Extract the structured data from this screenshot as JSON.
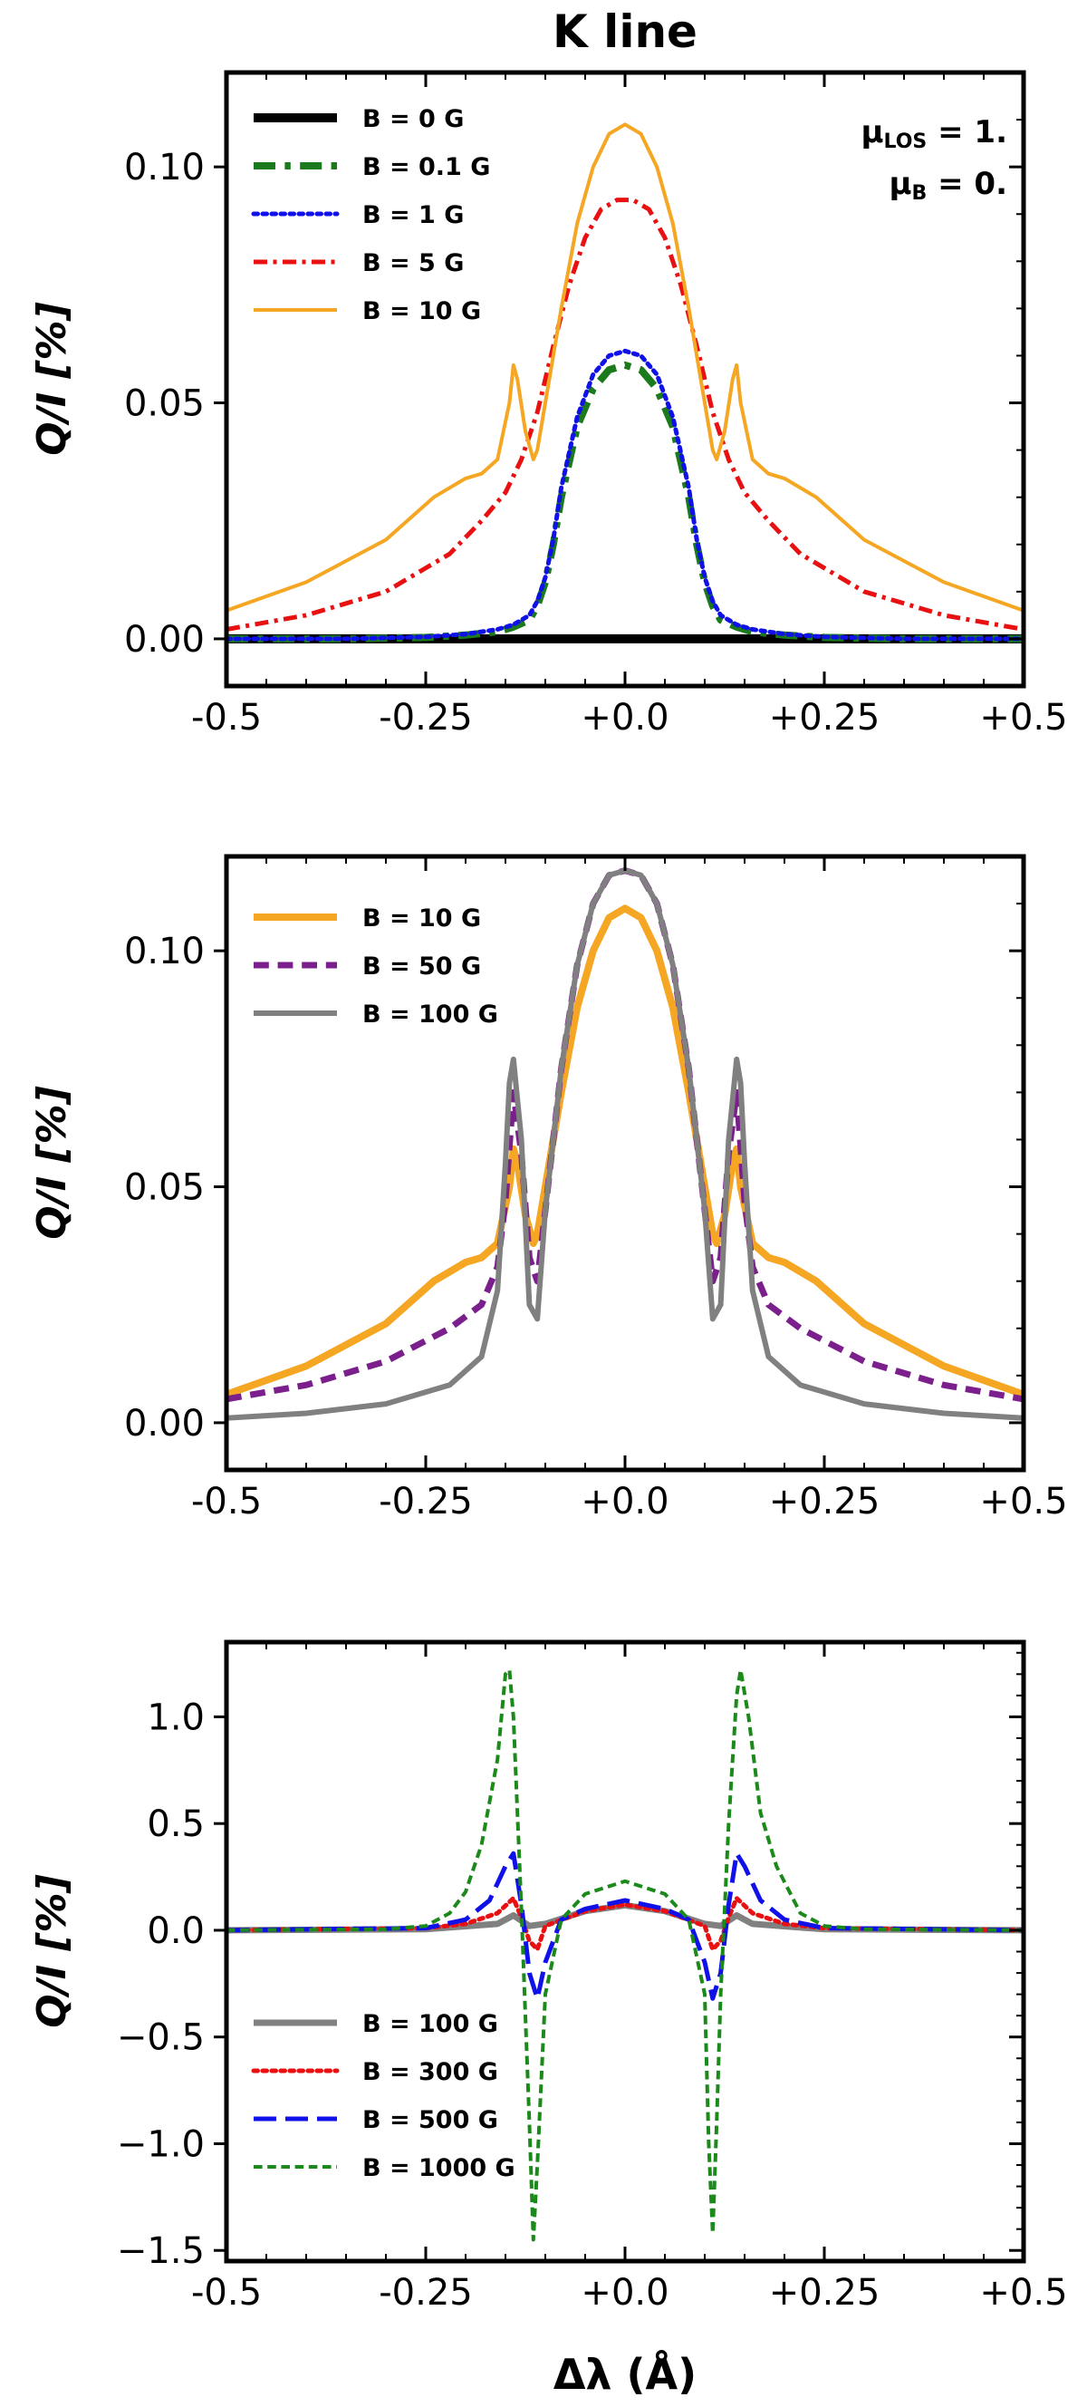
{
  "title": "K line",
  "xlabel": "Δλ (Å)",
  "ylabel": "Q/I [%]",
  "annotations": {
    "mu_los": {
      "symbol": "μ",
      "sub": "LOS",
      "value": " = 1."
    },
    "mu_b": {
      "symbol": "μ",
      "sub": "B",
      "value": " = 0."
    }
  },
  "chart_data": [
    {
      "type": "line",
      "panel": "top",
      "ylabel": "Q/I [%]",
      "xlim": [
        -0.5,
        0.5
      ],
      "ylim": [
        -0.01,
        0.12
      ],
      "xticks": [
        -0.5,
        -0.25,
        0.0,
        0.25,
        0.5
      ],
      "xtick_labels": [
        "-0.5",
        "-0.25",
        "+0.0",
        "+0.25",
        "+0.5"
      ],
      "yticks": [
        0.0,
        0.05,
        0.1
      ],
      "ytick_labels": [
        "0.00",
        "0.05",
        "0.10"
      ],
      "legend_position": "upper-left",
      "series": [
        {
          "name": "B = 0 G",
          "color": "#000000",
          "dash": "solid",
          "width": 10,
          "x": [
            -0.5,
            0.5
          ],
          "y": [
            0.0,
            0.0
          ]
        },
        {
          "name": "B = 0.1 G",
          "color": "#1b7a1b",
          "dash": "dashdot",
          "width": 8,
          "x": [
            -0.5,
            -0.35,
            -0.25,
            -0.2,
            -0.16,
            -0.14,
            -0.12,
            -0.11,
            -0.1,
            -0.09,
            -0.08,
            -0.06,
            -0.04,
            -0.02,
            0,
            0.02,
            0.04,
            0.06,
            0.08,
            0.09,
            0.1,
            0.11,
            0.12,
            0.14,
            0.16,
            0.2,
            0.25,
            0.35,
            0.5
          ],
          "y": [
            0,
            0,
            0.0003,
            0.0008,
            0.0015,
            0.0025,
            0.004,
            0.007,
            0.012,
            0.02,
            0.03,
            0.045,
            0.053,
            0.057,
            0.058,
            0.057,
            0.053,
            0.045,
            0.03,
            0.02,
            0.012,
            0.007,
            0.004,
            0.0025,
            0.0015,
            0.0008,
            0.0003,
            0,
            0
          ]
        },
        {
          "name": "B = 1 G",
          "color": "#1010e8",
          "dash": "dotted",
          "width": 5,
          "x": [
            -0.5,
            -0.35,
            -0.25,
            -0.2,
            -0.16,
            -0.14,
            -0.12,
            -0.11,
            -0.1,
            -0.09,
            -0.08,
            -0.06,
            -0.04,
            -0.02,
            0,
            0.02,
            0.04,
            0.06,
            0.08,
            0.09,
            0.1,
            0.11,
            0.12,
            0.14,
            0.16,
            0.2,
            0.25,
            0.35,
            0.5
          ],
          "y": [
            0,
            0,
            0.0004,
            0.001,
            0.002,
            0.003,
            0.005,
            0.008,
            0.013,
            0.021,
            0.032,
            0.047,
            0.056,
            0.06,
            0.061,
            0.06,
            0.056,
            0.047,
            0.032,
            0.021,
            0.013,
            0.008,
            0.005,
            0.003,
            0.002,
            0.001,
            0.0004,
            0,
            0
          ]
        },
        {
          "name": "B = 5 G",
          "color": "#e81010",
          "dash": "dashdot",
          "width": 5,
          "x": [
            -0.5,
            -0.4,
            -0.3,
            -0.22,
            -0.18,
            -0.15,
            -0.13,
            -0.11,
            -0.09,
            -0.07,
            -0.05,
            -0.03,
            -0.01,
            0,
            0.01,
            0.03,
            0.05,
            0.07,
            0.09,
            0.11,
            0.13,
            0.15,
            0.18,
            0.22,
            0.3,
            0.4,
            0.5
          ],
          "y": [
            0.002,
            0.005,
            0.01,
            0.018,
            0.025,
            0.031,
            0.038,
            0.048,
            0.062,
            0.075,
            0.085,
            0.091,
            0.093,
            0.093,
            0.093,
            0.091,
            0.085,
            0.075,
            0.062,
            0.048,
            0.038,
            0.031,
            0.025,
            0.018,
            0.01,
            0.005,
            0.002
          ]
        },
        {
          "name": "B = 10 G",
          "color": "#f5a623",
          "dash": "solid",
          "width": 4,
          "x": [
            -0.5,
            -0.4,
            -0.3,
            -0.24,
            -0.2,
            -0.18,
            -0.16,
            -0.145,
            -0.14,
            -0.135,
            -0.125,
            -0.115,
            -0.11,
            -0.1,
            -0.08,
            -0.06,
            -0.04,
            -0.02,
            0,
            0.02,
            0.04,
            0.06,
            0.08,
            0.1,
            0.11,
            0.115,
            0.125,
            0.135,
            0.14,
            0.145,
            0.16,
            0.18,
            0.2,
            0.24,
            0.3,
            0.4,
            0.5
          ],
          "y": [
            0.006,
            0.012,
            0.021,
            0.03,
            0.034,
            0.035,
            0.038,
            0.05,
            0.058,
            0.055,
            0.044,
            0.038,
            0.04,
            0.05,
            0.07,
            0.088,
            0.1,
            0.107,
            0.109,
            0.107,
            0.1,
            0.088,
            0.07,
            0.05,
            0.04,
            0.038,
            0.044,
            0.055,
            0.058,
            0.05,
            0.038,
            0.035,
            0.034,
            0.03,
            0.021,
            0.012,
            0.006
          ]
        }
      ]
    },
    {
      "type": "line",
      "panel": "middle",
      "ylabel": "Q/I [%]",
      "xlim": [
        -0.5,
        0.5
      ],
      "ylim": [
        -0.01,
        0.12
      ],
      "xticks": [
        -0.5,
        -0.25,
        0.0,
        0.25,
        0.5
      ],
      "xtick_labels": [
        "-0.5",
        "-0.25",
        "+0.0",
        "+0.25",
        "+0.5"
      ],
      "yticks": [
        0.0,
        0.05,
        0.1
      ],
      "ytick_labels": [
        "0.00",
        "0.05",
        "0.10"
      ],
      "legend_position": "upper-left",
      "series": [
        {
          "name": "B = 10 G",
          "color": "#f5a623",
          "dash": "solid",
          "width": 8,
          "x": [
            -0.5,
            -0.4,
            -0.3,
            -0.24,
            -0.2,
            -0.18,
            -0.16,
            -0.145,
            -0.14,
            -0.135,
            -0.125,
            -0.115,
            -0.11,
            -0.1,
            -0.08,
            -0.06,
            -0.04,
            -0.02,
            0,
            0.02,
            0.04,
            0.06,
            0.08,
            0.1,
            0.11,
            0.115,
            0.125,
            0.135,
            0.14,
            0.145,
            0.16,
            0.18,
            0.2,
            0.24,
            0.3,
            0.4,
            0.5
          ],
          "y": [
            0.006,
            0.012,
            0.021,
            0.03,
            0.034,
            0.035,
            0.038,
            0.05,
            0.058,
            0.055,
            0.044,
            0.038,
            0.04,
            0.05,
            0.07,
            0.088,
            0.1,
            0.107,
            0.109,
            0.107,
            0.1,
            0.088,
            0.07,
            0.05,
            0.04,
            0.038,
            0.044,
            0.055,
            0.058,
            0.05,
            0.038,
            0.035,
            0.034,
            0.03,
            0.021,
            0.012,
            0.006
          ]
        },
        {
          "name": "B = 50 G",
          "color": "#7b1f8c",
          "dash": "dashed",
          "width": 7,
          "x": [
            -0.5,
            -0.4,
            -0.3,
            -0.22,
            -0.18,
            -0.16,
            -0.15,
            -0.14,
            -0.13,
            -0.12,
            -0.11,
            -0.1,
            -0.08,
            -0.06,
            -0.04,
            -0.02,
            0,
            0.02,
            0.04,
            0.06,
            0.08,
            0.1,
            0.11,
            0.12,
            0.13,
            0.14,
            0.15,
            0.16,
            0.18,
            0.22,
            0.3,
            0.4,
            0.5
          ],
          "y": [
            0.005,
            0.008,
            0.013,
            0.02,
            0.025,
            0.033,
            0.047,
            0.07,
            0.057,
            0.035,
            0.03,
            0.045,
            0.075,
            0.097,
            0.11,
            0.116,
            0.117,
            0.116,
            0.11,
            0.097,
            0.075,
            0.045,
            0.03,
            0.035,
            0.057,
            0.07,
            0.047,
            0.033,
            0.025,
            0.02,
            0.013,
            0.008,
            0.005
          ]
        },
        {
          "name": "B = 100 G",
          "color": "#808080",
          "dash": "solid",
          "width": 6,
          "x": [
            -0.5,
            -0.4,
            -0.3,
            -0.22,
            -0.18,
            -0.16,
            -0.15,
            -0.145,
            -0.14,
            -0.13,
            -0.12,
            -0.11,
            -0.1,
            -0.08,
            -0.06,
            -0.04,
            -0.02,
            0,
            0.02,
            0.04,
            0.06,
            0.08,
            0.1,
            0.11,
            0.12,
            0.13,
            0.14,
            0.145,
            0.15,
            0.16,
            0.18,
            0.22,
            0.3,
            0.4,
            0.5
          ],
          "y": [
            0.001,
            0.002,
            0.004,
            0.008,
            0.014,
            0.028,
            0.055,
            0.072,
            0.077,
            0.06,
            0.025,
            0.022,
            0.045,
            0.075,
            0.097,
            0.11,
            0.116,
            0.117,
            0.116,
            0.11,
            0.097,
            0.075,
            0.045,
            0.022,
            0.025,
            0.06,
            0.077,
            0.072,
            0.055,
            0.028,
            0.014,
            0.008,
            0.004,
            0.002,
            0.001
          ]
        }
      ]
    },
    {
      "type": "line",
      "panel": "bottom",
      "ylabel": "Q/I [%]",
      "xlabel": "Δλ (Å)",
      "xlim": [
        -0.5,
        0.5
      ],
      "ylim": [
        -1.55,
        1.35
      ],
      "xticks": [
        -0.5,
        -0.25,
        0.0,
        0.25,
        0.5
      ],
      "xtick_labels": [
        "-0.5",
        "-0.25",
        "+0.0",
        "+0.25",
        "+0.5"
      ],
      "yticks": [
        -1.5,
        -1.0,
        -0.5,
        0.0,
        0.5,
        1.0
      ],
      "ytick_labels": [
        "−1.5",
        "−1.0",
        "−0.5",
        "0.0",
        "0.5",
        "1.0"
      ],
      "legend_position": "lower-left",
      "series": [
        {
          "name": "B = 100 G",
          "color": "#808080",
          "dash": "solid",
          "width": 7,
          "x": [
            -0.5,
            -0.25,
            -0.16,
            -0.14,
            -0.12,
            -0.1,
            -0.05,
            0,
            0.05,
            0.1,
            0.12,
            0.14,
            0.16,
            0.25,
            0.5
          ],
          "y": [
            0,
            0.005,
            0.03,
            0.07,
            0.02,
            0.03,
            0.09,
            0.117,
            0.09,
            0.03,
            0.02,
            0.07,
            0.03,
            0.005,
            0
          ]
        },
        {
          "name": "B = 300 G",
          "color": "#e81010",
          "dash": "dotted",
          "width": 5,
          "x": [
            -0.5,
            -0.25,
            -0.2,
            -0.16,
            -0.14,
            -0.13,
            -0.12,
            -0.11,
            -0.1,
            -0.05,
            0,
            0.05,
            0.1,
            0.11,
            0.12,
            0.13,
            0.14,
            0.16,
            0.2,
            0.25,
            0.5
          ],
          "y": [
            0,
            0.01,
            0.03,
            0.08,
            0.15,
            0.06,
            -0.05,
            -0.09,
            0.02,
            0.09,
            0.12,
            0.09,
            0.02,
            -0.09,
            -0.05,
            0.06,
            0.15,
            0.08,
            0.03,
            0.01,
            0
          ]
        },
        {
          "name": "B = 500 G",
          "color": "#1010e8",
          "dash": "longdash",
          "width": 5,
          "x": [
            -0.5,
            -0.25,
            -0.2,
            -0.17,
            -0.15,
            -0.14,
            -0.13,
            -0.12,
            -0.11,
            -0.1,
            -0.08,
            -0.05,
            0,
            0.05,
            0.08,
            0.1,
            0.11,
            0.12,
            0.13,
            0.14,
            0.15,
            0.17,
            0.2,
            0.25,
            0.5
          ],
          "y": [
            0,
            0.01,
            0.05,
            0.14,
            0.3,
            0.36,
            0.12,
            -0.2,
            -0.32,
            -0.15,
            0.05,
            0.1,
            0.14,
            0.1,
            0.05,
            -0.15,
            -0.32,
            -0.2,
            0.12,
            0.36,
            0.3,
            0.14,
            0.05,
            0.01,
            0
          ]
        },
        {
          "name": "B = 1000 G",
          "color": "#1b8a1b",
          "dash": "dashed",
          "width": 4,
          "x": [
            -0.5,
            -0.3,
            -0.25,
            -0.22,
            -0.2,
            -0.18,
            -0.16,
            -0.15,
            -0.145,
            -0.14,
            -0.13,
            -0.12,
            -0.115,
            -0.11,
            -0.1,
            -0.08,
            -0.05,
            0,
            0.05,
            0.08,
            0.1,
            0.105,
            0.11,
            0.115,
            0.12,
            0.13,
            0.14,
            0.145,
            0.155,
            0.17,
            0.19,
            0.22,
            0.25,
            0.3,
            0.5
          ],
          "y": [
            0,
            0.005,
            0.02,
            0.08,
            0.18,
            0.4,
            0.8,
            1.2,
            1.22,
            1.0,
            0.1,
            -0.9,
            -1.45,
            -1.1,
            -0.3,
            0.05,
            0.17,
            0.23,
            0.17,
            0.05,
            -0.3,
            -1.0,
            -1.42,
            -0.9,
            -0.3,
            0.5,
            1.1,
            1.22,
            1.0,
            0.55,
            0.3,
            0.08,
            0.02,
            0.005,
            0
          ]
        }
      ]
    }
  ]
}
